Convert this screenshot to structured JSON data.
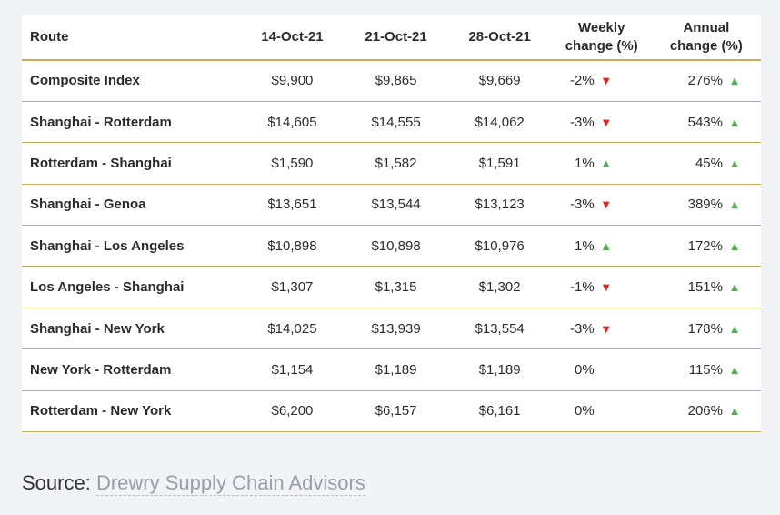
{
  "table": {
    "headers": {
      "route": "Route",
      "d1": "14-Oct-21",
      "d2": "21-Oct-21",
      "d3": "28-Oct-21",
      "weekly_line1": "Weekly",
      "weekly_line2": "change (%)",
      "annual_line1": "Annual",
      "annual_line2": "change (%)"
    },
    "rows": [
      {
        "route": "Composite Index",
        "d1": "$9,900",
        "d2": "$9,865",
        "d3": "$9,669",
        "weekly": "-2%",
        "weekly_dir": "down",
        "annual": "276%",
        "annual_dir": "up"
      },
      {
        "route": "Shanghai - Rotterdam",
        "d1": "$14,605",
        "d2": "$14,555",
        "d3": "$14,062",
        "weekly": "-3%",
        "weekly_dir": "down",
        "annual": "543%",
        "annual_dir": "up"
      },
      {
        "route": "Rotterdam - Shanghai",
        "d1": "$1,590",
        "d2": "$1,582",
        "d3": "$1,591",
        "weekly": "1%",
        "weekly_dir": "up",
        "annual": "45%",
        "annual_dir": "up"
      },
      {
        "route": "Shanghai - Genoa",
        "d1": "$13,651",
        "d2": "$13,544",
        "d3": "$13,123",
        "weekly": "-3%",
        "weekly_dir": "down",
        "annual": "389%",
        "annual_dir": "up"
      },
      {
        "route": "Shanghai - Los Angeles",
        "d1": "$10,898",
        "d2": "$10,898",
        "d3": "$10,976",
        "weekly": "1%",
        "weekly_dir": "up",
        "annual": "172%",
        "annual_dir": "up"
      },
      {
        "route": "Los Angeles - Shanghai",
        "d1": "$1,307",
        "d2": "$1,315",
        "d3": "$1,302",
        "weekly": "-1%",
        "weekly_dir": "down",
        "annual": "151%",
        "annual_dir": "up"
      },
      {
        "route": "Shanghai - New York",
        "d1": "$14,025",
        "d2": "$13,939",
        "d3": "$13,554",
        "weekly": "-3%",
        "weekly_dir": "down",
        "annual": "178%",
        "annual_dir": "up"
      },
      {
        "route": "New York - Rotterdam",
        "d1": "$1,154",
        "d2": "$1,189",
        "d3": "$1,189",
        "weekly": "0%",
        "weekly_dir": "none",
        "annual": "115%",
        "annual_dir": "up"
      },
      {
        "route": "Rotterdam - New York",
        "d1": "$6,200",
        "d2": "$6,157",
        "d3": "$6,161",
        "weekly": "0%",
        "weekly_dir": "none",
        "annual": "206%",
        "annual_dir": "up"
      }
    ]
  },
  "source": {
    "label": "Source:",
    "link_text": "Drewry Supply Chain Advisors"
  },
  "colors": {
    "rule": "#c9ad5f",
    "down": "#e1251b",
    "up": "#4caf50",
    "link": "#9a9da6"
  },
  "icons": {
    "up": "triangle-up-icon",
    "down": "triangle-down-icon"
  }
}
